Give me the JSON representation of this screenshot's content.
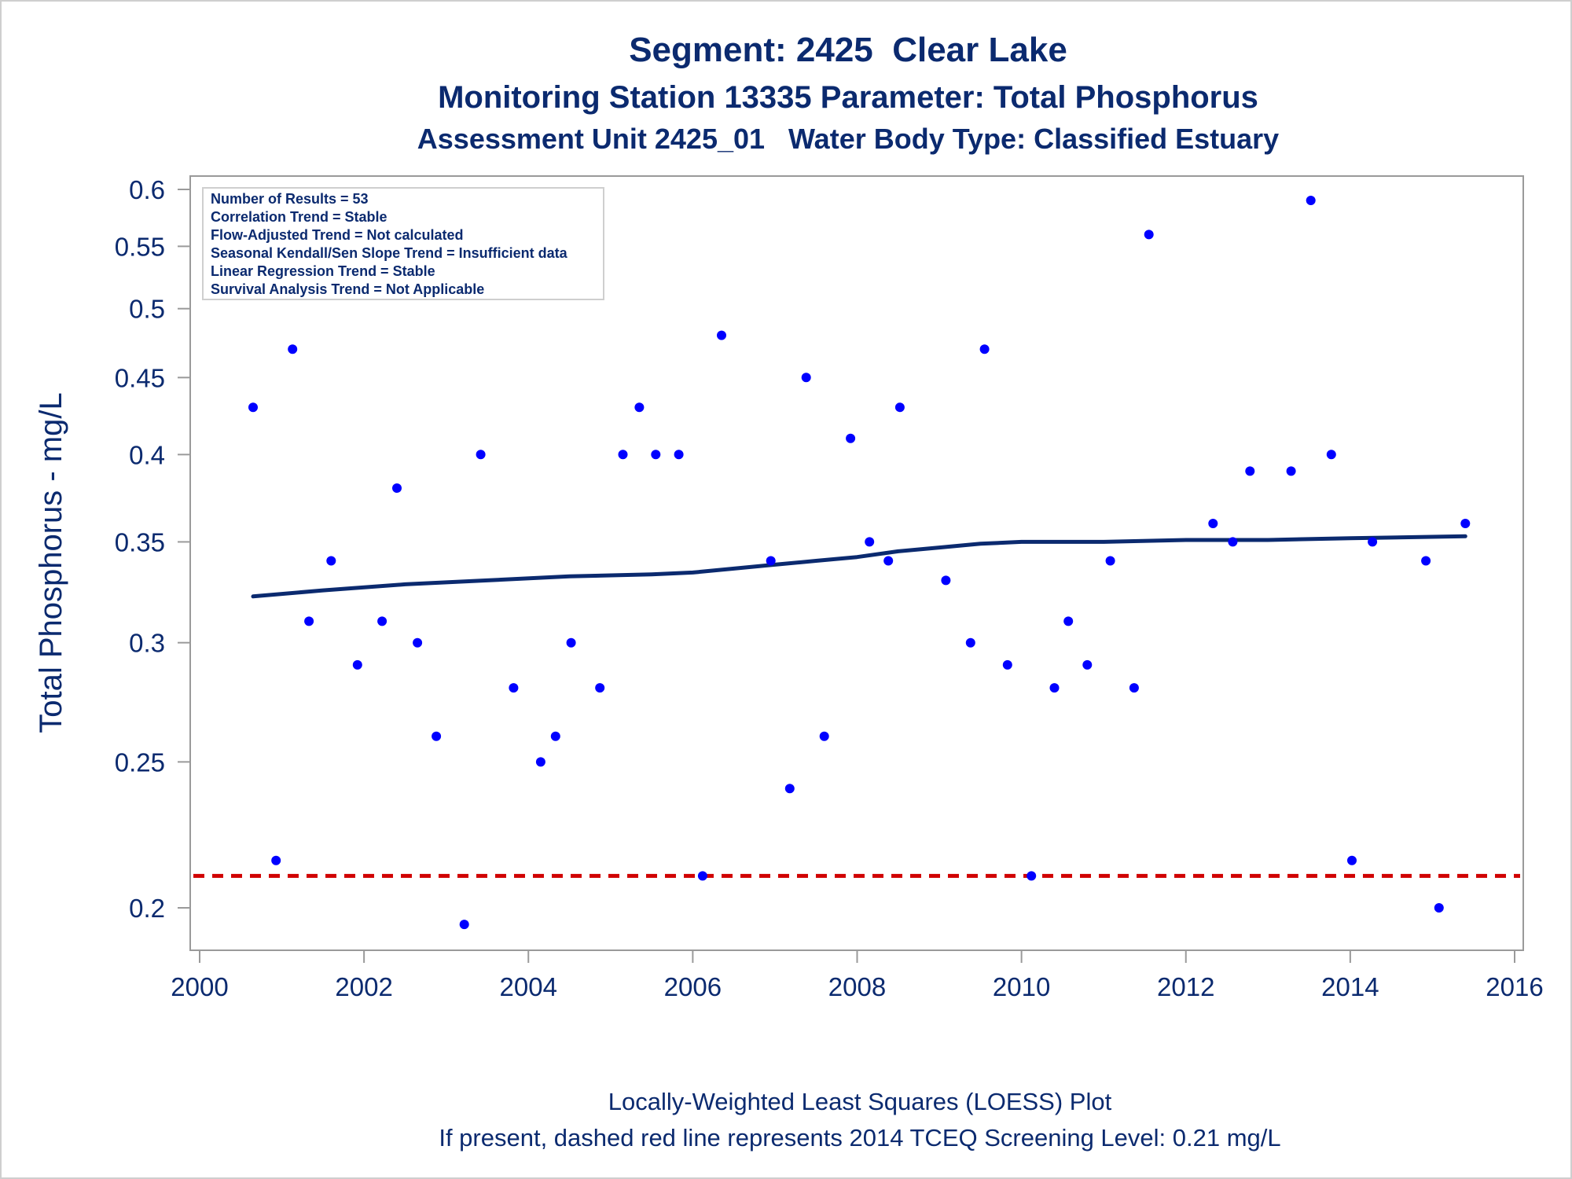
{
  "chart_data": {
    "type": "scatter",
    "title": "Segment: 2425  Clear Lake",
    "subtitle": "Monitoring Station 13335 Parameter: Total Phosphorus",
    "subtitle2": "Assessment Unit 2425_01   Water Body Type: Classified Estuary",
    "ylabel": "Total Phosphorus - mg/L",
    "footnote1": "Locally-Weighted Least Squares (LOESS) Plot",
    "footnote2": "If present, dashed red line represents 2014 TCEQ Screening Level: 0.21 mg/L",
    "y_scale": "log",
    "xlim": [
      2000,
      2016
    ],
    "ylim": [
      0.19,
      0.6
    ],
    "x_ticks": [
      "2000",
      "2002",
      "2004",
      "2006",
      "2008",
      "2010",
      "2012",
      "2014",
      "2016"
    ],
    "y_ticks": [
      "0.2",
      "0.25",
      "0.3",
      "0.35",
      "0.4",
      "0.45",
      "0.5",
      "0.55",
      "0.6"
    ],
    "grid": false,
    "info_box": [
      "Number of Results = 53",
      "Correlation Trend = Stable",
      "Flow-Adjusted Trend = Not calculated",
      "Seasonal Kendall/Sen Slope Trend = Insufficient data",
      "Linear Regression Trend = Stable",
      "Survival Analysis Trend = Not Applicable"
    ],
    "screening_level": 0.21,
    "colors": {
      "points": "#0000ff",
      "loess": "#0b2a6f",
      "screening": "#d00000",
      "text": "#0b2a6f"
    },
    "points": [
      {
        "x": 2000.65,
        "y": 0.43
      },
      {
        "x": 2000.93,
        "y": 0.215
      },
      {
        "x": 2001.13,
        "y": 0.47
      },
      {
        "x": 2001.33,
        "y": 0.31
      },
      {
        "x": 2001.6,
        "y": 0.34
      },
      {
        "x": 2001.92,
        "y": 0.29
      },
      {
        "x": 2002.22,
        "y": 0.31
      },
      {
        "x": 2002.4,
        "y": 0.38
      },
      {
        "x": 2002.65,
        "y": 0.3
      },
      {
        "x": 2002.88,
        "y": 0.26
      },
      {
        "x": 2003.22,
        "y": 0.195
      },
      {
        "x": 2003.42,
        "y": 0.4
      },
      {
        "x": 2003.82,
        "y": 0.28
      },
      {
        "x": 2004.15,
        "y": 0.25
      },
      {
        "x": 2004.33,
        "y": 0.26
      },
      {
        "x": 2004.52,
        "y": 0.3
      },
      {
        "x": 2004.87,
        "y": 0.28
      },
      {
        "x": 2005.15,
        "y": 0.4
      },
      {
        "x": 2005.35,
        "y": 0.43
      },
      {
        "x": 2005.55,
        "y": 0.4
      },
      {
        "x": 2005.83,
        "y": 0.4
      },
      {
        "x": 2006.12,
        "y": 0.21
      },
      {
        "x": 2006.35,
        "y": 0.48
      },
      {
        "x": 2006.95,
        "y": 0.34
      },
      {
        "x": 2007.18,
        "y": 0.24
      },
      {
        "x": 2007.38,
        "y": 0.45
      },
      {
        "x": 2007.6,
        "y": 0.26
      },
      {
        "x": 2007.92,
        "y": 0.41
      },
      {
        "x": 2008.15,
        "y": 0.35
      },
      {
        "x": 2008.38,
        "y": 0.34
      },
      {
        "x": 2008.52,
        "y": 0.43
      },
      {
        "x": 2009.08,
        "y": 0.33
      },
      {
        "x": 2009.38,
        "y": 0.3
      },
      {
        "x": 2009.55,
        "y": 0.47
      },
      {
        "x": 2009.83,
        "y": 0.29
      },
      {
        "x": 2010.12,
        "y": 0.21
      },
      {
        "x": 2010.4,
        "y": 0.28
      },
      {
        "x": 2010.57,
        "y": 0.31
      },
      {
        "x": 2010.8,
        "y": 0.29
      },
      {
        "x": 2011.08,
        "y": 0.34
      },
      {
        "x": 2011.37,
        "y": 0.28
      },
      {
        "x": 2011.55,
        "y": 0.56
      },
      {
        "x": 2012.33,
        "y": 0.36
      },
      {
        "x": 2012.57,
        "y": 0.35
      },
      {
        "x": 2012.78,
        "y": 0.39
      },
      {
        "x": 2013.28,
        "y": 0.39
      },
      {
        "x": 2013.52,
        "y": 0.59
      },
      {
        "x": 2013.77,
        "y": 0.4
      },
      {
        "x": 2014.02,
        "y": 0.215
      },
      {
        "x": 2014.27,
        "y": 0.35
      },
      {
        "x": 2014.92,
        "y": 0.34
      },
      {
        "x": 2015.08,
        "y": 0.2
      },
      {
        "x": 2015.4,
        "y": 0.36
      }
    ],
    "loess": [
      {
        "x": 2000.65,
        "y": 0.322
      },
      {
        "x": 2001.5,
        "y": 0.325
      },
      {
        "x": 2002.5,
        "y": 0.328
      },
      {
        "x": 2003.5,
        "y": 0.33
      },
      {
        "x": 2004.5,
        "y": 0.332
      },
      {
        "x": 2005.5,
        "y": 0.333
      },
      {
        "x": 2006.0,
        "y": 0.334
      },
      {
        "x": 2006.5,
        "y": 0.336
      },
      {
        "x": 2007.0,
        "y": 0.338
      },
      {
        "x": 2007.5,
        "y": 0.34
      },
      {
        "x": 2008.0,
        "y": 0.342
      },
      {
        "x": 2008.5,
        "y": 0.345
      },
      {
        "x": 2009.0,
        "y": 0.347
      },
      {
        "x": 2009.5,
        "y": 0.349
      },
      {
        "x": 2010.0,
        "y": 0.35
      },
      {
        "x": 2011.0,
        "y": 0.35
      },
      {
        "x": 2012.0,
        "y": 0.351
      },
      {
        "x": 2013.0,
        "y": 0.351
      },
      {
        "x": 2014.0,
        "y": 0.352
      },
      {
        "x": 2015.4,
        "y": 0.353
      }
    ]
  }
}
